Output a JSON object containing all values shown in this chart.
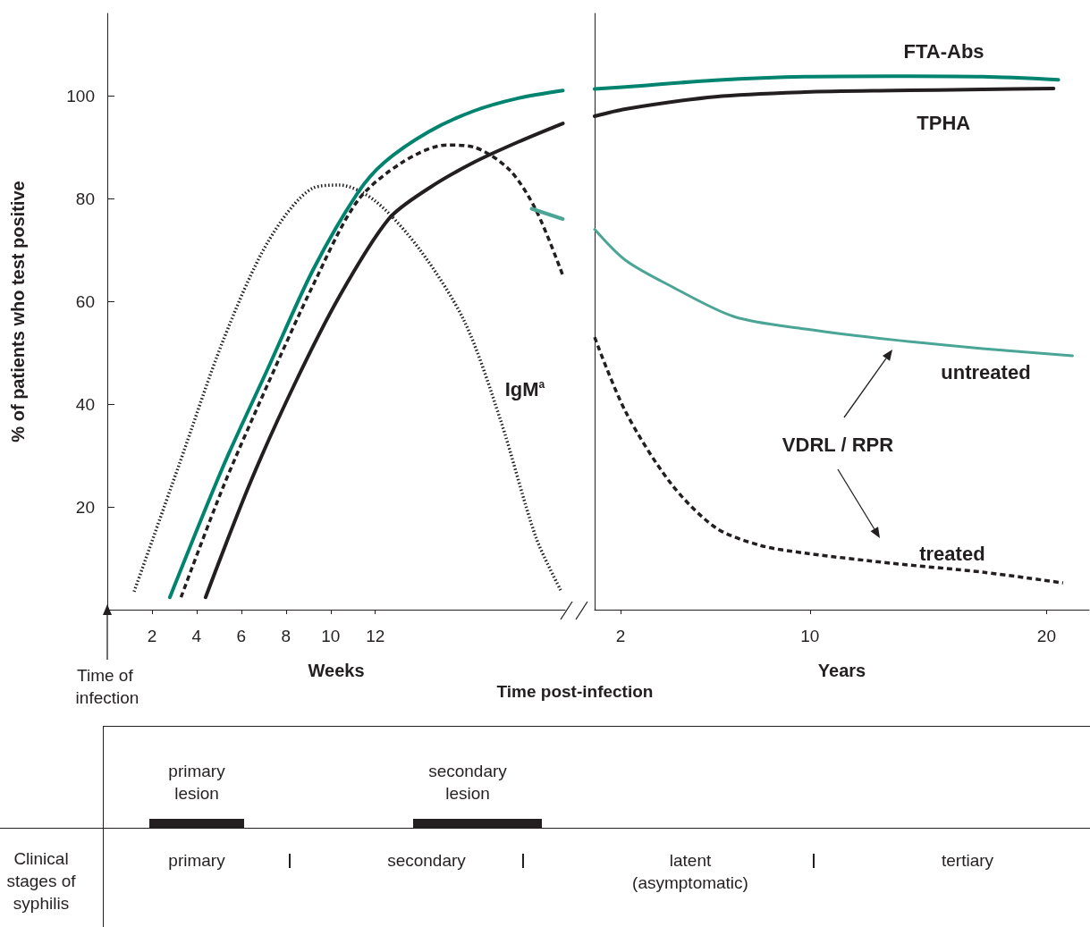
{
  "chart_data": [
    {
      "type": "line",
      "xlabel": "Weeks",
      "ylabel": "% of patients who test positive",
      "xlim": [
        0,
        20.5
      ],
      "xticks": [
        2,
        4,
        6,
        8,
        10,
        12
      ],
      "ylim": [
        0,
        116
      ],
      "yticks": [
        20,
        40,
        60,
        80,
        100
      ],
      "grid": false,
      "legend": false,
      "marker": "none",
      "annotations": [
        "Time of infection",
        "Time post-infection"
      ],
      "series": [
        {
          "name": "IgM$^{a}$",
          "color": "#231f20",
          "line_style": "dotted",
          "x": [
            1.2,
            3.2,
            5.2,
            7.2,
            9.2,
            10.4,
            12,
            14,
            16,
            17.6,
            19.2,
            20.3
          ],
          "values": [
            3.5,
            28,
            52.5,
            71.6,
            82,
            82.6,
            79.5,
            70,
            56,
            37,
            14,
            3.8
          ]
        },
        {
          "color": "#00836f",
          "line_style": "solid",
          "x": [
            2.8,
            5.2,
            7.2,
            9.2,
            11.2,
            12.4,
            14.4,
            16.4,
            18.4,
            20.4
          ],
          "values": [
            2.4,
            28,
            47,
            66,
            81,
            87,
            93,
            97,
            99.5,
            101
          ]
        },
        {
          "color": "#231f20",
          "line_style": "dashed",
          "x": [
            3.3,
            5.2,
            7.2,
            9.2,
            11.2,
            13.2,
            15.2,
            16.4,
            18,
            19.2,
            20.4
          ],
          "values": [
            2.4,
            24,
            44,
            63,
            79.5,
            87,
            90.4,
            90,
            85.6,
            77.7,
            65
          ]
        },
        {
          "color": "#231f20",
          "line_style": "solid",
          "x": [
            4.4,
            6.4,
            8.4,
            10.4,
            12.6,
            14.4,
            16.4,
            18.4,
            20.4
          ],
          "values": [
            2.4,
            24.7,
            44,
            61,
            76,
            82,
            87,
            91,
            94.6
          ]
        },
        {
          "color": "#4aa596",
          "line_style": "solid",
          "x": [
            19.0,
            20.4
          ],
          "values": [
            78,
            76
          ]
        }
      ]
    },
    {
      "type": "line",
      "xlabel": "Years",
      "xlim": [
        0.9,
        21.8
      ],
      "xticks": [
        2,
        10,
        20
      ],
      "ylim": [
        0,
        116
      ],
      "yticks": [
        20,
        40,
        60,
        80,
        100
      ],
      "tick_labels": "x",
      "grid": false,
      "legend": false,
      "marker": "none",
      "annotations": [
        "VDRL / RPR"
      ],
      "series": [
        {
          "name": "FTA-Abs",
          "color": "#00836f",
          "line_style": "solid",
          "x": [
            0.9,
            2.2,
            6,
            9.8,
            13.5,
            17.3,
            20.5
          ],
          "values": [
            101.3,
            101.7,
            103,
            103.7,
            103.8,
            103.7,
            103.1
          ]
        },
        {
          "name": "TPHA",
          "color": "#231f20",
          "line_style": "solid",
          "x": [
            0.9,
            2.2,
            6,
            9.8,
            13.5,
            17.3,
            20.3
          ],
          "values": [
            96,
            97.4,
            99.8,
            100.7,
            101,
            101.2,
            101.4
          ]
        },
        {
          "name": "untreated",
          "color": "#4aa596",
          "line_style": "solid",
          "x": [
            0.9,
            2.2,
            4.1,
            6.8,
            9.8,
            13.5,
            17.3,
            21.1
          ],
          "values": [
            74,
            68,
            63,
            57,
            54.6,
            52.5,
            50.8,
            49.4
          ]
        },
        {
          "name": "treated",
          "color": "#231f20",
          "line_style": "dashed",
          "x": [
            0.9,
            2.2,
            4.1,
            6,
            7.9,
            9.8,
            13.5,
            17.3,
            20.7
          ],
          "values": [
            53,
            38.6,
            24.7,
            16,
            12.5,
            11,
            9,
            7.3,
            5.2
          ]
        }
      ]
    },
    {
      "type": "other",
      "annotations": [
        "primary lesion",
        "secondary lesion",
        "Clinical stages of syphilis",
        "primary",
        "secondary",
        "latent (asymptomatic)",
        "tertiary"
      ]
    }
  ]
}
